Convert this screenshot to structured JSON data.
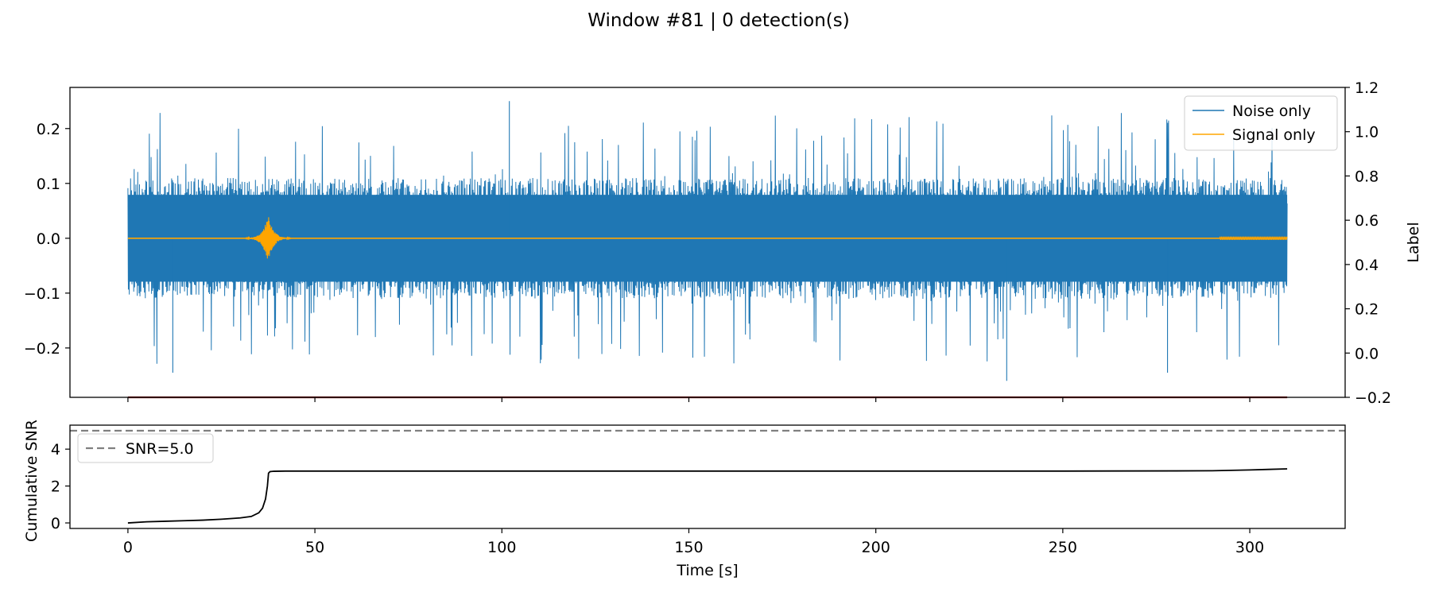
{
  "figure": {
    "title": "Window #81 | 0 detection(s)"
  },
  "chart_data": [
    {
      "type": "line",
      "panel": "waveform",
      "xlim": [
        -15.5,
        325.5
      ],
      "ylim": [
        -0.29,
        0.275
      ],
      "y_ticks": [
        -0.2,
        -0.1,
        0.0,
        0.1,
        0.2
      ],
      "y_tick_labels": [
        "−0.2",
        "−0.1",
        "0.0",
        "0.1",
        "0.2"
      ],
      "x_ticks": [
        0,
        50,
        100,
        150,
        200,
        250,
        300
      ],
      "secondary_y": {
        "label": "Label",
        "ylim": [
          -0.2,
          1.2
        ],
        "ticks": [
          -0.2,
          0.0,
          0.2,
          0.4,
          0.6,
          0.8,
          1.0,
          1.2
        ],
        "tick_labels": [
          "−0.2",
          "0.0",
          "0.2",
          "0.4",
          "0.6",
          "0.8",
          "1.0",
          "1.2"
        ]
      },
      "legend": {
        "position": "top-right",
        "entries": [
          "Noise only",
          "Signal only"
        ]
      },
      "series": [
        {
          "name": "Noise only",
          "color": "#1f77b4",
          "x_range": [
            0,
            310
          ],
          "core_amplitude": 0.11,
          "peak_amplitude": 0.25,
          "notable_peaks": [
            {
              "x": 102,
              "y": 0.25
            },
            {
              "x": 235,
              "y": -0.26
            },
            {
              "x": 12,
              "y": -0.245
            },
            {
              "x": 278,
              "y": -0.245
            }
          ]
        },
        {
          "name": "Signal only",
          "color": "#ffa500",
          "x_range": [
            0,
            310
          ],
          "baseline": 0.0,
          "burst": {
            "x": 37.5,
            "peak": 0.045,
            "min": -0.048
          },
          "minor_wiggle": {
            "x_range": [
              292,
              310
            ],
            "amplitude": 0.003
          }
        },
        {
          "name": "Label",
          "axis": "secondary",
          "color": "#8b0000",
          "x": [
            0,
            310
          ],
          "y": [
            -0.2,
            -0.2
          ]
        }
      ]
    },
    {
      "type": "line",
      "panel": "cumulative-snr",
      "xlabel": "Time [s]",
      "ylabel": "Cumulative SNR",
      "xlim": [
        -15.5,
        325.5
      ],
      "ylim": [
        -0.3,
        5.3
      ],
      "x_ticks": [
        0,
        50,
        100,
        150,
        200,
        250,
        300
      ],
      "y_ticks": [
        0,
        2,
        4
      ],
      "legend": {
        "position": "top-left",
        "entries": [
          "SNR=5.0"
        ]
      },
      "series": [
        {
          "name": "Cumulative SNR",
          "color": "#000000",
          "x": [
            0,
            5,
            10,
            15,
            20,
            25,
            30,
            33,
            35,
            36,
            36.8,
            37.3,
            37.6,
            38,
            39,
            42,
            50,
            100,
            150,
            200,
            250,
            280,
            290,
            295,
            300,
            305,
            310
          ],
          "y": [
            0.0,
            0.06,
            0.09,
            0.12,
            0.15,
            0.2,
            0.27,
            0.35,
            0.55,
            0.8,
            1.3,
            2.0,
            2.7,
            2.78,
            2.8,
            2.81,
            2.81,
            2.81,
            2.81,
            2.81,
            2.81,
            2.82,
            2.83,
            2.85,
            2.87,
            2.9,
            2.93
          ]
        },
        {
          "name": "SNR=5.0",
          "color": "#808080",
          "dashed": true,
          "y": 5.0
        }
      ]
    }
  ]
}
